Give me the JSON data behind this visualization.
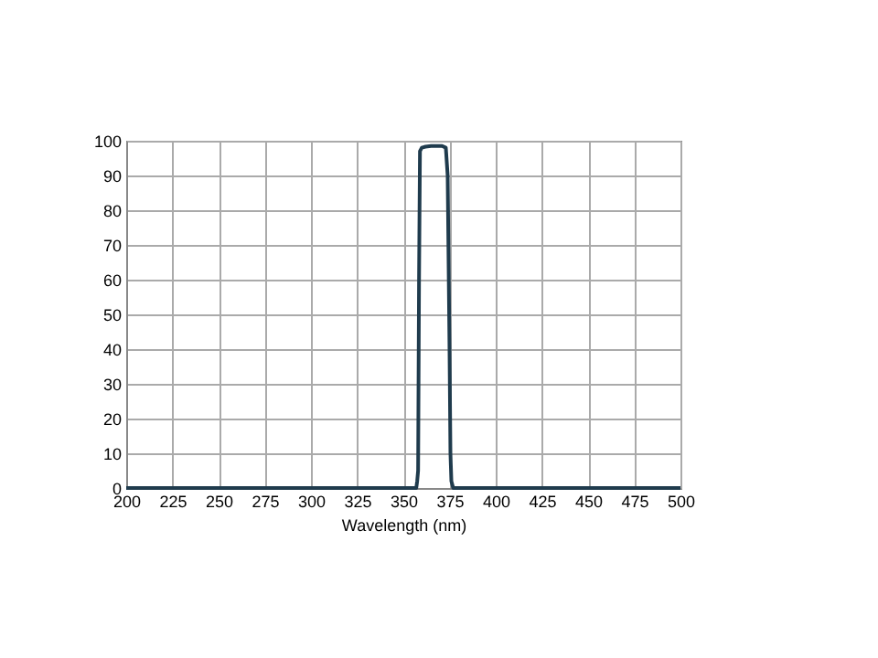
{
  "chart_data": {
    "type": "line",
    "xlabel": "Wavelength (nm)",
    "x": [
      200,
      300,
      357,
      357.5,
      358,
      358.5,
      359,
      360,
      362,
      365,
      368,
      371,
      373,
      374,
      375,
      375.5,
      376,
      377,
      400,
      500
    ],
    "series": [
      {
        "color": "#1f3b4d",
        "values": [
          0,
          0,
          0,
          2,
          5,
          60,
          97,
          98,
          98.3,
          98.5,
          98.5,
          98.5,
          98,
          90,
          40,
          10,
          2,
          0,
          0,
          0
        ]
      }
    ],
    "xlim": [
      200,
      500
    ],
    "xticks": [
      200,
      225,
      250,
      275,
      300,
      325,
      350,
      375,
      400,
      425,
      450,
      475,
      500
    ],
    "ylim": [
      0,
      100
    ],
    "yticks": [
      0,
      10,
      20,
      30,
      40,
      50,
      60,
      70,
      80,
      90,
      100
    ],
    "grid": true,
    "legend": false,
    "marker": "none",
    "line_style": "solid"
  }
}
